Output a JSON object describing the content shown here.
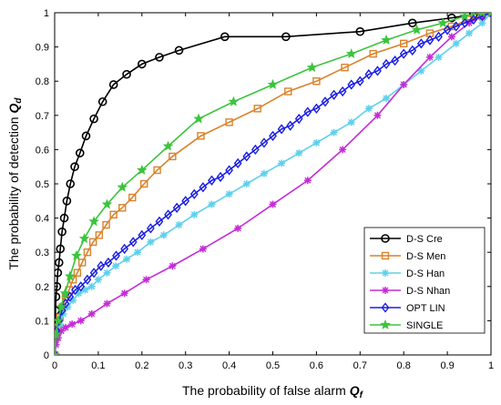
{
  "chart_data": {
    "type": "line",
    "title": "",
    "xlabel": "The probability of false alarm",
    "xlabel_symbol": "Q",
    "xlabel_subscript": "f",
    "ylabel": "The probability of detection",
    "ylabel_symbol": "Q",
    "ylabel_subscript": "d",
    "xlim": [
      0,
      1
    ],
    "ylim": [
      0,
      1
    ],
    "xticks": [
      "0",
      "0.1",
      "0.2",
      "0.3",
      "0.4",
      "0.5",
      "0.6",
      "0.7",
      "0.8",
      "0.9",
      "1"
    ],
    "yticks": [
      "0",
      "0.1",
      "0.2",
      "0.3",
      "0.4",
      "0.5",
      "0.6",
      "0.7",
      "0.8",
      "0.9",
      "1"
    ],
    "legend_position": "bottom-right",
    "grid": false,
    "series": [
      {
        "name": "D-S Cre",
        "color": "#000000",
        "marker": "circle",
        "x": [
          0,
          0.001,
          0.002,
          0.003,
          0.005,
          0.007,
          0.01,
          0.013,
          0.017,
          0.022,
          0.028,
          0.036,
          0.046,
          0.058,
          0.072,
          0.09,
          0.11,
          0.135,
          0.165,
          0.2,
          0.24,
          0.285,
          0.39,
          0.53,
          0.7,
          0.82,
          0.91,
          0.96,
          1.0
        ],
        "y": [
          0,
          0.08,
          0.13,
          0.17,
          0.2,
          0.24,
          0.27,
          0.31,
          0.36,
          0.4,
          0.45,
          0.5,
          0.55,
          0.59,
          0.64,
          0.69,
          0.74,
          0.79,
          0.82,
          0.85,
          0.87,
          0.89,
          0.93,
          0.93,
          0.945,
          0.97,
          0.985,
          0.995,
          1.0
        ]
      },
      {
        "name": "D-S Men",
        "color": "#d9822b",
        "marker": "square",
        "x": [
          0,
          0.003,
          0.007,
          0.012,
          0.018,
          0.025,
          0.033,
          0.042,
          0.052,
          0.063,
          0.075,
          0.088,
          0.102,
          0.118,
          0.135,
          0.155,
          0.178,
          0.205,
          0.235,
          0.27,
          0.335,
          0.4,
          0.465,
          0.535,
          0.6,
          0.665,
          0.73,
          0.8,
          0.86,
          0.91,
          0.95,
          0.98,
          1.0
        ],
        "y": [
          0,
          0.05,
          0.08,
          0.11,
          0.14,
          0.17,
          0.19,
          0.22,
          0.24,
          0.27,
          0.3,
          0.33,
          0.35,
          0.38,
          0.41,
          0.43,
          0.46,
          0.5,
          0.54,
          0.58,
          0.64,
          0.68,
          0.72,
          0.77,
          0.8,
          0.84,
          0.88,
          0.91,
          0.94,
          0.96,
          0.98,
          0.99,
          1.0
        ]
      },
      {
        "name": "D-S Han",
        "color": "#5fd0ec",
        "marker": "asterisk",
        "x": [
          0,
          0.005,
          0.012,
          0.02,
          0.03,
          0.042,
          0.055,
          0.07,
          0.085,
          0.1,
          0.12,
          0.14,
          0.165,
          0.19,
          0.22,
          0.25,
          0.285,
          0.32,
          0.36,
          0.4,
          0.44,
          0.48,
          0.52,
          0.56,
          0.6,
          0.64,
          0.68,
          0.72,
          0.76,
          0.8,
          0.84,
          0.88,
          0.92,
          0.95,
          0.98,
          1.0
        ],
        "y": [
          0,
          0.06,
          0.09,
          0.12,
          0.14,
          0.16,
          0.18,
          0.19,
          0.2,
          0.22,
          0.24,
          0.26,
          0.28,
          0.3,
          0.33,
          0.35,
          0.38,
          0.41,
          0.44,
          0.47,
          0.5,
          0.53,
          0.56,
          0.59,
          0.62,
          0.65,
          0.68,
          0.72,
          0.75,
          0.79,
          0.83,
          0.87,
          0.91,
          0.94,
          0.97,
          1.0
        ]
      },
      {
        "name": "D-S Nhan",
        "color": "#c42cd6",
        "marker": "asterisk",
        "x": [
          0,
          0.003,
          0.008,
          0.015,
          0.025,
          0.04,
          0.06,
          0.085,
          0.12,
          0.16,
          0.21,
          0.27,
          0.34,
          0.42,
          0.5,
          0.58,
          0.66,
          0.74,
          0.8,
          0.86,
          0.91,
          0.95,
          0.98,
          1.0
        ],
        "y": [
          0,
          0.03,
          0.05,
          0.07,
          0.08,
          0.09,
          0.1,
          0.12,
          0.15,
          0.18,
          0.22,
          0.26,
          0.31,
          0.37,
          0.44,
          0.51,
          0.6,
          0.7,
          0.79,
          0.87,
          0.93,
          0.97,
          0.99,
          1.0
        ]
      },
      {
        "name": "OPT LIN",
        "color": "#1a1ee0",
        "marker": "diamond",
        "x": [
          0,
          0.004,
          0.01,
          0.017,
          0.025,
          0.035,
          0.047,
          0.06,
          0.075,
          0.09,
          0.106,
          0.123,
          0.141,
          0.16,
          0.18,
          0.2,
          0.22,
          0.24,
          0.26,
          0.28,
          0.3,
          0.32,
          0.34,
          0.36,
          0.38,
          0.4,
          0.42,
          0.44,
          0.46,
          0.48,
          0.5,
          0.52,
          0.54,
          0.56,
          0.58,
          0.6,
          0.62,
          0.64,
          0.66,
          0.68,
          0.7,
          0.72,
          0.74,
          0.76,
          0.78,
          0.8,
          0.82,
          0.84,
          0.86,
          0.88,
          0.9,
          0.92,
          0.94,
          0.96,
          0.98,
          1.0
        ],
        "y": [
          0,
          0.07,
          0.1,
          0.13,
          0.15,
          0.17,
          0.19,
          0.2,
          0.22,
          0.24,
          0.26,
          0.27,
          0.29,
          0.31,
          0.33,
          0.35,
          0.37,
          0.39,
          0.41,
          0.43,
          0.45,
          0.47,
          0.49,
          0.51,
          0.52,
          0.54,
          0.56,
          0.58,
          0.6,
          0.62,
          0.64,
          0.66,
          0.67,
          0.69,
          0.71,
          0.72,
          0.74,
          0.76,
          0.77,
          0.79,
          0.8,
          0.82,
          0.83,
          0.85,
          0.86,
          0.88,
          0.89,
          0.91,
          0.92,
          0.93,
          0.95,
          0.96,
          0.97,
          0.98,
          0.99,
          1.0
        ]
      },
      {
        "name": "SINGLE",
        "color": "#3cc43c",
        "marker": "star",
        "x": [
          0,
          0.003,
          0.008,
          0.015,
          0.024,
          0.035,
          0.05,
          0.068,
          0.09,
          0.12,
          0.155,
          0.2,
          0.26,
          0.33,
          0.41,
          0.5,
          0.59,
          0.68,
          0.76,
          0.83,
          0.89,
          0.94,
          0.98,
          1.0
        ],
        "y": [
          0,
          0.06,
          0.1,
          0.14,
          0.18,
          0.23,
          0.29,
          0.34,
          0.39,
          0.44,
          0.49,
          0.54,
          0.61,
          0.69,
          0.74,
          0.79,
          0.84,
          0.88,
          0.92,
          0.95,
          0.97,
          0.99,
          1.0,
          1.0
        ]
      }
    ]
  }
}
